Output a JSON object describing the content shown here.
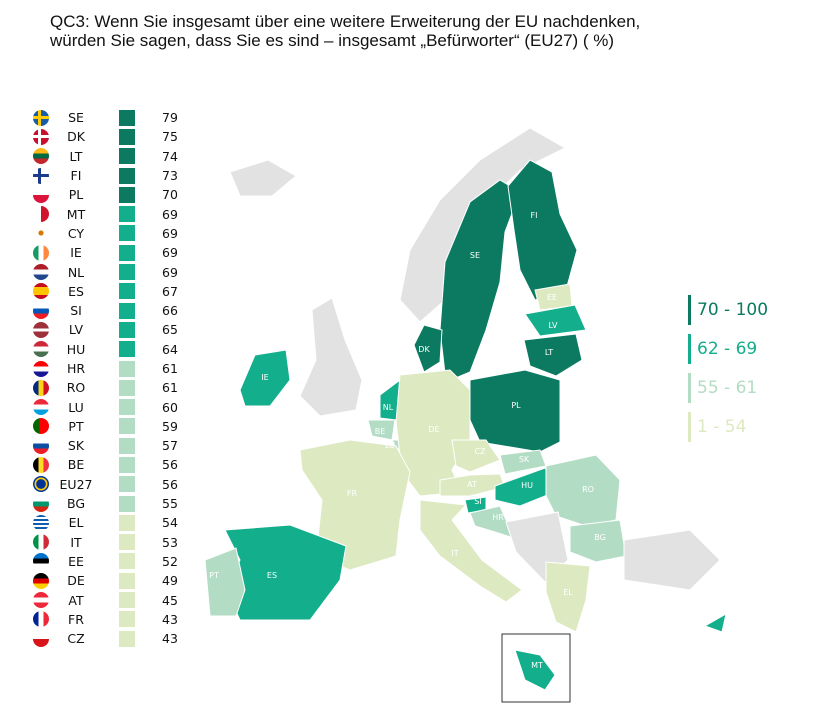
{
  "title": "QC3: Wenn Sie insgesamt über eine weitere Erweiterung der EU nachdenken, würden Sie sagen, dass Sie es sind – insgesamt „Befürworter“ (EU27) ( %)",
  "colors": {
    "band1": "#0b7a60",
    "band2": "#13ae8c",
    "band3": "#b3dcc5",
    "band4": "#dde9c1",
    "nodata": "#e2e2e2"
  },
  "bands": [
    {
      "label": "70 - 100",
      "min": 70,
      "max": 100
    },
    {
      "label": "62 - 69",
      "min": 62,
      "max": 69
    },
    {
      "label": "55 - 61",
      "min": 55,
      "max": 61
    },
    {
      "label": "1 - 54",
      "min": 1,
      "max": 54
    }
  ],
  "rows": [
    {
      "code": "SE",
      "value": 79
    },
    {
      "code": "DK",
      "value": 75
    },
    {
      "code": "LT",
      "value": 74
    },
    {
      "code": "FI",
      "value": 73
    },
    {
      "code": "PL",
      "value": 70
    },
    {
      "code": "MT",
      "value": 69
    },
    {
      "code": "CY",
      "value": 69
    },
    {
      "code": "IE",
      "value": 69
    },
    {
      "code": "NL",
      "value": 69
    },
    {
      "code": "ES",
      "value": 67
    },
    {
      "code": "SI",
      "value": 66
    },
    {
      "code": "LV",
      "value": 65
    },
    {
      "code": "HU",
      "value": 64
    },
    {
      "code": "HR",
      "value": 61
    },
    {
      "code": "RO",
      "value": 61
    },
    {
      "code": "LU",
      "value": 60
    },
    {
      "code": "PT",
      "value": 59
    },
    {
      "code": "SK",
      "value": 57
    },
    {
      "code": "BE",
      "value": 56
    },
    {
      "code": "EU27",
      "value": 56
    },
    {
      "code": "BG",
      "value": 55
    },
    {
      "code": "EL",
      "value": 54
    },
    {
      "code": "IT",
      "value": 53
    },
    {
      "code": "EE",
      "value": 52
    },
    {
      "code": "DE",
      "value": 49
    },
    {
      "code": "AT",
      "value": 45
    },
    {
      "code": "FR",
      "value": 43
    },
    {
      "code": "CZ",
      "value": 43
    }
  ]
}
